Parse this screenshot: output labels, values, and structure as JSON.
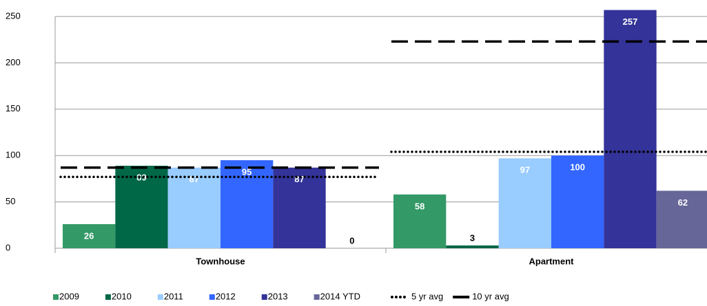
{
  "chart_data": {
    "type": "bar",
    "categories": [
      "Townhouse",
      "Apartment"
    ],
    "series": [
      {
        "name": "2009",
        "color": "#339966",
        "values": [
          26,
          58
        ]
      },
      {
        "name": "2010",
        "color": "#006747",
        "values": [
          89,
          3
        ]
      },
      {
        "name": "2011",
        "color": "#99ccff",
        "values": [
          87,
          97
        ]
      },
      {
        "name": "2012",
        "color": "#3366ff",
        "values": [
          95,
          100
        ]
      },
      {
        "name": "2013",
        "color": "#333399",
        "values": [
          87,
          257
        ]
      },
      {
        "name": "2014 YTD",
        "color": "#666699",
        "values": [
          0,
          62
        ]
      }
    ],
    "averages": [
      {
        "name": "5 yr avg",
        "style": "dotted",
        "legend_style": "dotted",
        "values": [
          77,
          104
        ]
      },
      {
        "name": "10 yr avg",
        "style": "dashed",
        "legend_style": "solid",
        "values": [
          87,
          223
        ]
      }
    ],
    "ylim": [
      0,
      250
    ],
    "yticks": [
      0,
      50,
      100,
      150,
      200,
      250
    ],
    "grid": true,
    "legend": "bottom"
  }
}
